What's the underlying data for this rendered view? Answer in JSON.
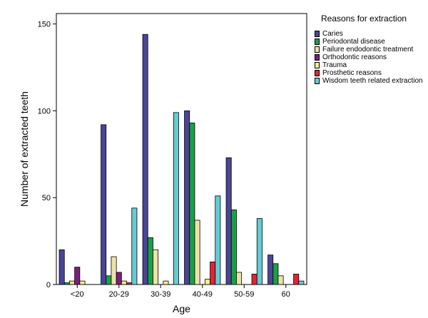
{
  "chart_data": {
    "type": "bar",
    "xlabel": "Age",
    "ylabel": "Number of extracted teeth",
    "ylim": [
      0,
      150
    ],
    "yticks": [
      0,
      50,
      100,
      150
    ],
    "grid": false,
    "legend_position": "right",
    "legend_title": "Reasons for extraction",
    "categories": [
      "<20",
      "20-29",
      "30-39",
      "40-49",
      "50-59",
      "60"
    ],
    "series": [
      {
        "name": "Caries",
        "color": "#4a4596",
        "values": [
          20,
          92,
          144,
          100,
          73,
          17
        ]
      },
      {
        "name": "Periodontal disease",
        "color": "#1aa044",
        "values": [
          1,
          5,
          27,
          93,
          43,
          12
        ]
      },
      {
        "name": "Failure endodontic treatment",
        "color": "#ebe3a8",
        "values": [
          2,
          16,
          20,
          37,
          7,
          5
        ]
      },
      {
        "name": "Orthodontic reasons",
        "color": "#7c1f7a",
        "values": [
          10,
          7,
          0,
          0,
          0,
          0
        ]
      },
      {
        "name": "Trauma",
        "color": "#f0f08a",
        "values": [
          2,
          2,
          2,
          3,
          0,
          0
        ]
      },
      {
        "name": "Prosthetic reasons",
        "color": "#e32239",
        "values": [
          0,
          1,
          0,
          13,
          6,
          6
        ]
      },
      {
        "name": "Wisdom teeth related extraction",
        "color": "#66cbd2",
        "values": [
          0,
          44,
          99,
          51,
          38,
          2
        ]
      }
    ]
  }
}
